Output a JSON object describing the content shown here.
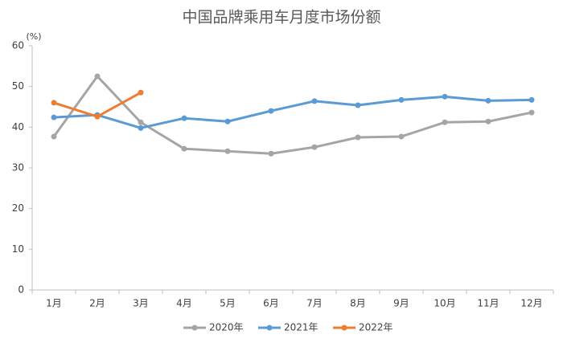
{
  "chart_data": {
    "type": "line",
    "title": "中国品牌乘用车月度市场份额",
    "y_unit": "(%)",
    "categories": [
      "1月",
      "2月",
      "3月",
      "4月",
      "5月",
      "6月",
      "7月",
      "8月",
      "9月",
      "10月",
      "11月",
      "12月"
    ],
    "series": [
      {
        "name": "2020年",
        "color": "#a5a5a5",
        "values": [
          37.7,
          52.5,
          41.2,
          34.7,
          34.1,
          33.5,
          35.1,
          37.5,
          37.7,
          41.2,
          41.4,
          43.6
        ]
      },
      {
        "name": "2021年",
        "color": "#5b9bd5",
        "values": [
          42.4,
          43.0,
          39.8,
          42.2,
          41.4,
          44.0,
          46.4,
          45.4,
          46.7,
          47.5,
          46.5,
          46.7
        ]
      },
      {
        "name": "2022年",
        "color": "#ed7d31",
        "values": [
          46.0,
          42.6,
          48.5,
          null,
          null,
          null,
          null,
          null,
          null,
          null,
          null,
          null
        ]
      }
    ],
    "ylim": [
      0,
      60
    ],
    "yticks": [
      0,
      10,
      20,
      30,
      40,
      50,
      60
    ],
    "grid": false
  }
}
